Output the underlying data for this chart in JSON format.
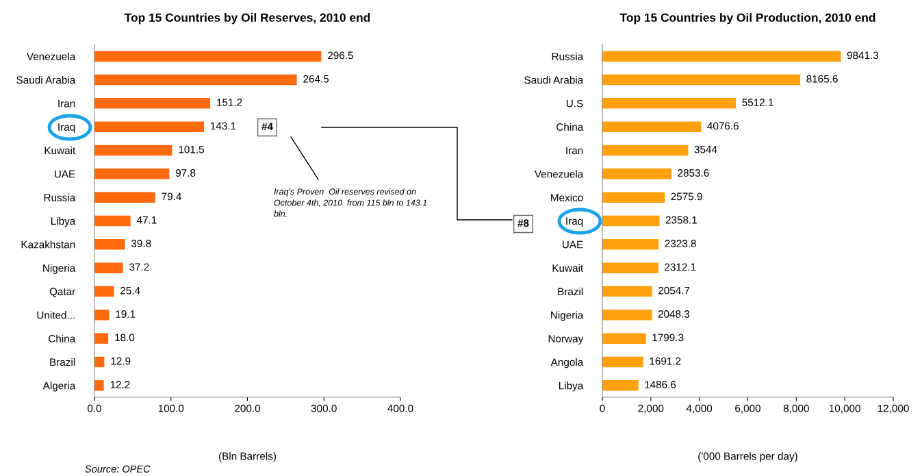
{
  "chart_data": [
    {
      "type": "bar",
      "orientation": "horizontal",
      "title": "Top 15 Countries by Oil Reserves, 2010 end",
      "xlabel": "(Bln Barrels)",
      "categories": [
        "Venezuela",
        "Saudi Arabia",
        "Iran",
        "Iraq",
        "Kuwait",
        "UAE",
        "Russia",
        "Libya",
        "Kazakhstan",
        "Nigeria",
        "Qatar",
        "United...",
        "China",
        "Brazil",
        "Algeria"
      ],
      "values": [
        296.5,
        264.5,
        151.2,
        143.1,
        101.5,
        97.8,
        79.4,
        47.1,
        39.8,
        37.2,
        25.4,
        19.1,
        18.0,
        12.9,
        12.2
      ],
      "value_labels": [
        "296.5",
        "264.5",
        "151.2",
        "143.1",
        "101.5",
        "97.8",
        "79.4",
        "47.1",
        "39.8",
        "37.2",
        "25.4",
        "19.1",
        "18.0",
        "12.9",
        "12.2"
      ],
      "color": "#ff6a0d",
      "xlim": [
        0,
        400
      ],
      "xticks": [
        {
          "value": 0,
          "label": "0.0"
        },
        {
          "value": 100,
          "label": "100.0"
        },
        {
          "value": 200,
          "label": "200.0"
        },
        {
          "value": 300,
          "label": "300.0"
        },
        {
          "value": 400,
          "label": "400.0"
        }
      ],
      "grid": false,
      "legend": false,
      "annotations": [
        "#4",
        "Iraq's Proven  Oil reserves revised on October 4th, 2010  from 115 bln to 143.1 bln.",
        "Source: OPEC"
      ]
    },
    {
      "type": "bar",
      "orientation": "horizontal",
      "title": "Top 15 Countries by Oil Production, 2010 end",
      "xlabel": "('000 Barrels per day)",
      "categories": [
        "Russia",
        "Saudi Arabia",
        "U.S",
        "China",
        "Iran",
        "Venezuela",
        "Mexico",
        "Iraq",
        "UAE",
        "Kuwait",
        "Brazil",
        "Nigeria",
        "Norway",
        "Angola",
        "Libya"
      ],
      "values": [
        9841.3,
        8165.6,
        5512.1,
        4076.6,
        3544,
        2853.6,
        2575.9,
        2358.1,
        2323.8,
        2312.1,
        2054.7,
        2048.3,
        1799.3,
        1691.2,
        1486.6
      ],
      "data_labels": true,
      "color": "#ffa00f",
      "xlim": [
        0,
        12000
      ],
      "xticks": [
        0,
        {
          "value": 2000,
          "label": "2,000"
        },
        {
          "value": 4000,
          "label": "4,000"
        },
        {
          "value": 6000,
          "label": "6,000"
        },
        {
          "value": 8000,
          "label": "8,000"
        },
        {
          "value": 10000,
          "label": "10,000"
        },
        {
          "value": 12000,
          "label": "12,000"
        }
      ],
      "grid": false,
      "legend": false,
      "annotations": [
        "#8"
      ]
    }
  ]
}
